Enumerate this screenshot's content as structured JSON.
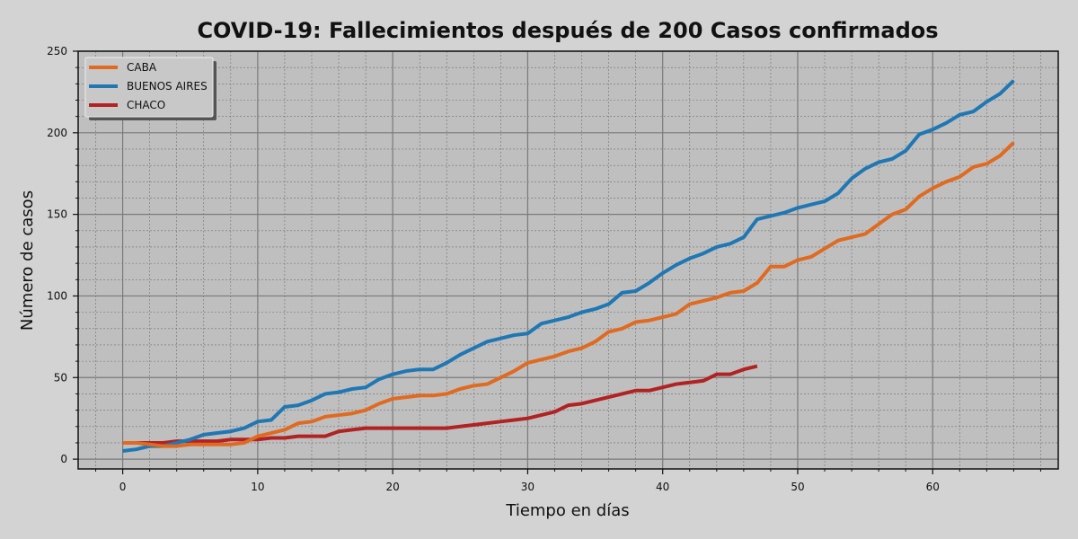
{
  "chart_data": {
    "type": "line",
    "title": "COVID-19: Fallecimientos después de 200 Casos confirmados",
    "xlabel": "Tiempo en días",
    "ylabel": "Número de casos",
    "xlim": [
      -3.3,
      69.3
    ],
    "ylim": [
      -6,
      250
    ],
    "x_ticks": [
      0,
      10,
      20,
      30,
      40,
      50,
      60
    ],
    "y_ticks": [
      0,
      50,
      100,
      150,
      200,
      250
    ],
    "x_tick_labels": [
      "0",
      "10",
      "20",
      "30",
      "40",
      "50",
      "60"
    ],
    "y_tick_labels": [
      "0",
      "50",
      "100",
      "150",
      "200",
      "250"
    ],
    "grid": true,
    "minor_grid": true,
    "legend_position": "top-left",
    "series": [
      {
        "name": "CABA",
        "color": "#e06a20",
        "start_x": 0,
        "values": [
          10,
          10,
          9,
          8,
          8,
          9,
          9,
          9,
          9,
          10,
          14,
          16,
          18,
          22,
          23,
          26,
          27,
          28,
          30,
          34,
          37,
          38,
          39,
          39,
          40,
          43,
          45,
          46,
          50,
          54,
          59,
          61,
          63,
          66,
          68,
          72,
          78,
          80,
          84,
          85,
          87,
          89,
          95,
          97,
          99,
          102,
          103,
          108,
          118,
          118,
          122,
          124,
          129,
          134,
          136,
          138,
          144,
          150,
          153,
          161,
          166,
          170,
          173,
          179,
          181,
          186,
          194
        ]
      },
      {
        "name": "BUENOS AIRES",
        "color": "#1f77b4",
        "start_x": 0,
        "values": [
          5,
          6,
          8,
          8,
          10,
          12,
          15,
          16,
          17,
          19,
          23,
          24,
          32,
          33,
          36,
          40,
          41,
          43,
          44,
          49,
          52,
          54,
          55,
          55,
          59,
          64,
          68,
          72,
          74,
          76,
          77,
          83,
          85,
          87,
          90,
          92,
          95,
          102,
          103,
          108,
          114,
          119,
          123,
          126,
          130,
          132,
          136,
          147,
          149,
          151,
          154,
          156,
          158,
          163,
          172,
          178,
          182,
          184,
          189,
          199,
          202,
          206,
          211,
          213,
          219,
          224,
          232
        ]
      },
      {
        "name": "CHACO",
        "color": "#b22222",
        "start_x": 0,
        "values": [
          10,
          10,
          10,
          10,
          11,
          11,
          11,
          11,
          12,
          12,
          12,
          13,
          13,
          14,
          14,
          14,
          17,
          18,
          19,
          19,
          19,
          19,
          19,
          19,
          19,
          20,
          21,
          22,
          23,
          24,
          25,
          27,
          29,
          33,
          34,
          36,
          38,
          40,
          42,
          42,
          44,
          46,
          47,
          48,
          52,
          52,
          55,
          57
        ]
      }
    ]
  }
}
